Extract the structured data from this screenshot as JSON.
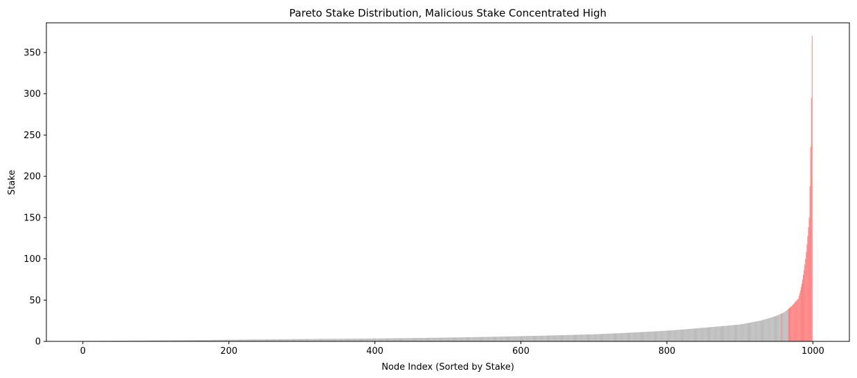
{
  "chart_data": {
    "type": "bar",
    "title": "Pareto Stake Distribution, Malicious Stake Concentrated High",
    "xlabel": "Node Index (Sorted by Stake)",
    "ylabel": "Stake",
    "xlim": [
      -50,
      1050
    ],
    "ylim": [
      0,
      386
    ],
    "xticks": [
      0,
      200,
      400,
      600,
      800,
      1000
    ],
    "yticks": [
      0,
      50,
      100,
      150,
      200,
      250,
      300,
      350
    ],
    "grid": false,
    "legend": "none",
    "colors": {
      "honest": "#b0b0b0",
      "malicious": "#ff6b6b"
    },
    "n_nodes": 1000,
    "stake_profile": {
      "node_index": [
        0,
        100,
        200,
        300,
        400,
        500,
        600,
        700,
        800,
        850,
        900,
        930,
        950,
        960,
        970,
        980,
        985,
        990,
        995,
        999
      ],
      "stake": [
        0.5,
        1.2,
        2.0,
        2.8,
        3.5,
        4.6,
        6.3,
        8.6,
        13.0,
        16.5,
        20.5,
        25.5,
        31.0,
        35.0,
        42.0,
        52.0,
        70.0,
        100.0,
        150.0,
        370.0
      ]
    },
    "malicious_ranges": [
      [
        957,
        957
      ],
      [
        967,
        999
      ]
    ]
  }
}
